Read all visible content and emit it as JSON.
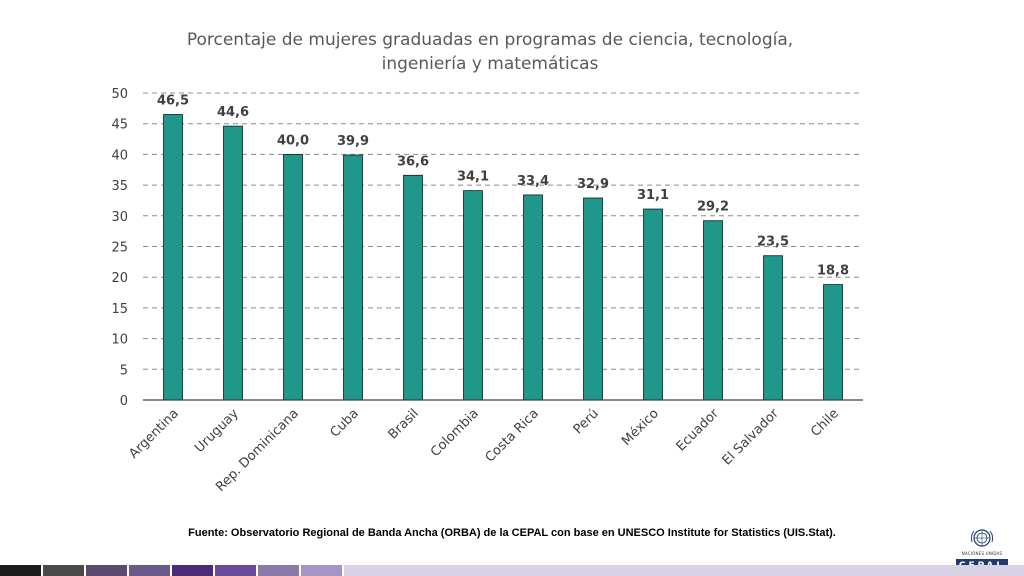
{
  "chart_data": {
    "type": "bar",
    "title_lines": [
      "Porcentaje de mujeres graduadas en programas de ciencia, tecnología,",
      "ingeniería y matemáticas"
    ],
    "categories": [
      "Argentina",
      "Uruguay",
      "Rep. Dominicana",
      "Cuba",
      "Brasil",
      "Colombia",
      "Costa Rica",
      "Perú",
      "México",
      "Ecuador",
      "El Salvador",
      "Chile"
    ],
    "values": [
      46.5,
      44.6,
      40.0,
      39.9,
      36.6,
      34.1,
      33.4,
      32.9,
      31.1,
      29.2,
      23.5,
      18.8
    ],
    "data_labels": [
      "46,5",
      "44,6",
      "40,0",
      "39,9",
      "36,6",
      "34,1",
      "33,4",
      "32,9",
      "31,1",
      "29,2",
      "23,5",
      "18,8"
    ],
    "ylim": [
      0,
      50
    ],
    "yticks": [
      0,
      5,
      10,
      15,
      20,
      25,
      30,
      35,
      40,
      45,
      50
    ],
    "xlabel": "",
    "ylabel": "",
    "grid": true,
    "bar_color": "#1f978b"
  },
  "source_note": "Fuente: Observatorio Regional de Banda Ancha (ORBA) de la CEPAL con base en UNESCO Institute for Statistics (UIS.Stat).",
  "logo": {
    "subtext": "NACIONES UNIDAS",
    "name": "CEPAL"
  },
  "footer_colors": [
    "#1c1c1c",
    "#4a4a4a",
    "#5a4a6e",
    "#6a5a8a",
    "#4b2a7a",
    "#6a4a9a",
    "#8a7aaa",
    "#a595c5",
    "#d9d2e6"
  ]
}
